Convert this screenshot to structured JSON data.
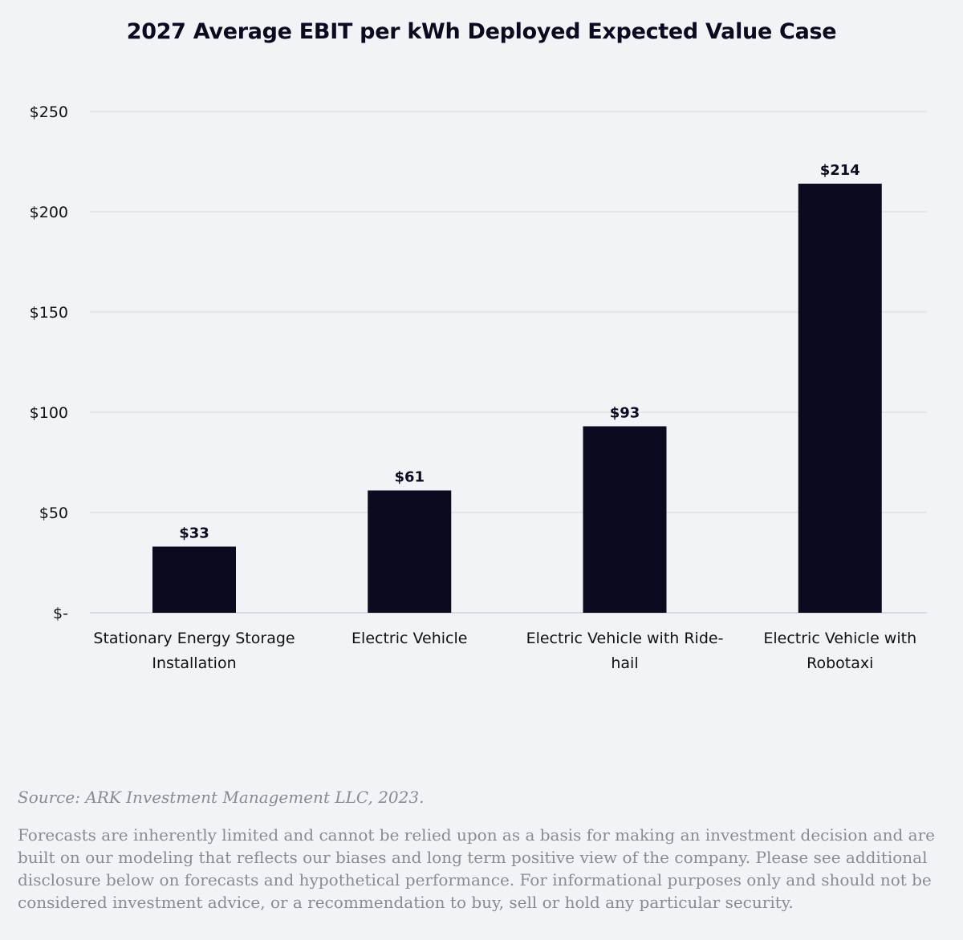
{
  "chart_data": {
    "type": "bar",
    "title": "2027 Average EBIT per kWh Deployed Expected Value Case",
    "categories": [
      [
        "Stationary Energy Storage",
        "Installation"
      ],
      [
        "Electric Vehicle"
      ],
      [
        "Electric Vehicle with Ride-",
        "hail"
      ],
      [
        "Electric Vehicle with",
        "Robotaxi"
      ]
    ],
    "values": [
      33,
      61,
      93,
      214
    ],
    "data_labels": [
      "$33",
      "$61",
      "$93",
      "$214"
    ],
    "yticks": [
      0,
      50,
      100,
      150,
      200,
      250
    ],
    "ytick_labels": [
      "$-",
      "$50",
      "$100",
      "$150",
      "$200",
      "$250"
    ],
    "ylim": [
      0,
      250
    ],
    "grid": true,
    "bar_color": "#0b0b1f",
    "grid_color": "#dcdde3"
  },
  "footer": {
    "source": "Source: ARK Investment Management LLC, 2023.",
    "disclaimer": "Forecasts are inherently limited and cannot be relied upon as a basis for making an investment decision and are built on our modeling that reflects our biases and long term positive view of the company. Please see additional disclosure below on forecasts and hypothetical performance. For informational purposes only and should not be considered investment advice, or a recommendation to buy, sell or hold any particular security."
  }
}
